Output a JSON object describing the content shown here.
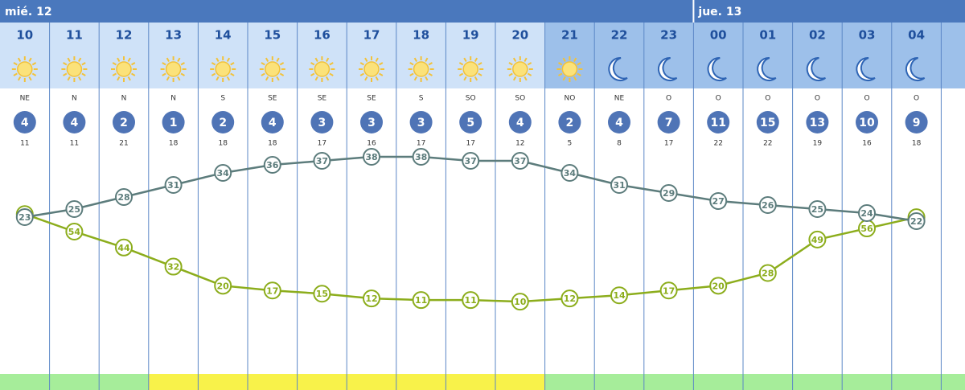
{
  "days": [
    {
      "label": "mié. 12",
      "hours": [
        {
          "hour": "10",
          "icon": "sun",
          "header": "light",
          "wind_dir": "NE",
          "wind_speed": 4,
          "gust": 11,
          "temp": 23,
          "humidity": 65,
          "band": "green"
        },
        {
          "hour": "11",
          "icon": "sun",
          "header": "light",
          "wind_dir": "N",
          "wind_speed": 4,
          "gust": 11,
          "temp": 25,
          "humidity": 54,
          "band": "green"
        },
        {
          "hour": "12",
          "icon": "sun",
          "header": "light",
          "wind_dir": "N",
          "wind_speed": 2,
          "gust": 21,
          "temp": 28,
          "humidity": 44,
          "band": "green"
        },
        {
          "hour": "13",
          "icon": "sun",
          "header": "light",
          "wind_dir": "N",
          "wind_speed": 1,
          "gust": 18,
          "temp": 31,
          "humidity": 32,
          "band": "yellow"
        },
        {
          "hour": "14",
          "icon": "sun",
          "header": "light",
          "wind_dir": "S",
          "wind_speed": 2,
          "gust": 18,
          "temp": 34,
          "humidity": 20,
          "band": "yellow"
        },
        {
          "hour": "15",
          "icon": "sun",
          "header": "light",
          "wind_dir": "SE",
          "wind_speed": 4,
          "gust": 18,
          "temp": 36,
          "humidity": 17,
          "band": "yellow"
        },
        {
          "hour": "16",
          "icon": "sun",
          "header": "light",
          "wind_dir": "SE",
          "wind_speed": 3,
          "gust": 17,
          "temp": 37,
          "humidity": 15,
          "band": "yellow"
        },
        {
          "hour": "17",
          "icon": "sun",
          "header": "light",
          "wind_dir": "SE",
          "wind_speed": 3,
          "gust": 16,
          "temp": 38,
          "humidity": 12,
          "band": "yellow"
        },
        {
          "hour": "18",
          "icon": "sun",
          "header": "light",
          "wind_dir": "S",
          "wind_speed": 3,
          "gust": 17,
          "temp": 38,
          "humidity": 11,
          "band": "yellow"
        },
        {
          "hour": "19",
          "icon": "sun",
          "header": "light",
          "wind_dir": "SO",
          "wind_speed": 5,
          "gust": 17,
          "temp": 37,
          "humidity": 11,
          "band": "yellow"
        },
        {
          "hour": "20",
          "icon": "sun",
          "header": "light",
          "wind_dir": "SO",
          "wind_speed": 4,
          "gust": 12,
          "temp": 37,
          "humidity": 10,
          "band": "yellow"
        },
        {
          "hour": "21",
          "icon": "sun",
          "header": "dark",
          "wind_dir": "NO",
          "wind_speed": 2,
          "gust": 5,
          "temp": 34,
          "humidity": 12,
          "band": "green"
        },
        {
          "hour": "22",
          "icon": "moon",
          "header": "dark",
          "wind_dir": "NE",
          "wind_speed": 4,
          "gust": 8,
          "temp": 31,
          "humidity": 14,
          "band": "green"
        },
        {
          "hour": "23",
          "icon": "moon",
          "header": "dark",
          "wind_dir": "O",
          "wind_speed": 7,
          "gust": 17,
          "temp": 29,
          "humidity": 17,
          "band": "green"
        }
      ]
    },
    {
      "label": "jue. 13",
      "hours": [
        {
          "hour": "00",
          "icon": "moon",
          "header": "dark",
          "wind_dir": "O",
          "wind_speed": 11,
          "gust": 22,
          "temp": 27,
          "humidity": 20,
          "band": "green"
        },
        {
          "hour": "01",
          "icon": "moon",
          "header": "dark",
          "wind_dir": "O",
          "wind_speed": 15,
          "gust": 22,
          "temp": 26,
          "humidity": 28,
          "band": "green"
        },
        {
          "hour": "02",
          "icon": "moon",
          "header": "dark",
          "wind_dir": "O",
          "wind_speed": 13,
          "gust": 19,
          "temp": 25,
          "humidity": 49,
          "band": "green"
        },
        {
          "hour": "03",
          "icon": "moon",
          "header": "dark",
          "wind_dir": "O",
          "wind_speed": 10,
          "gust": 16,
          "temp": 24,
          "humidity": 56,
          "band": "green"
        },
        {
          "hour": "04",
          "icon": "moon",
          "header": "dark",
          "wind_dir": "O",
          "wind_speed": 9,
          "gust": 18,
          "temp": 22,
          "humidity": 63,
          "band": "green"
        }
      ]
    }
  ]
}
